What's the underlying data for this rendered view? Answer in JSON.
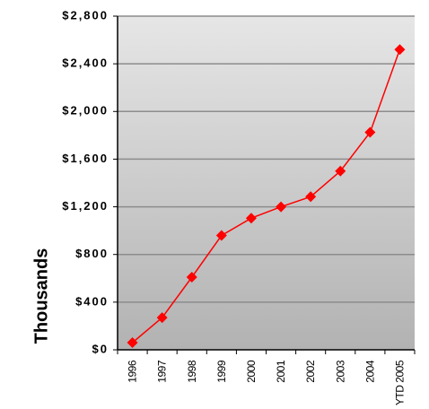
{
  "chart_data": {
    "type": "line",
    "title": "",
    "xlabel": "",
    "ylabel": "Thousands",
    "categories": [
      "1996",
      "1997",
      "1998",
      "1999",
      "2000",
      "2001",
      "2002",
      "2003",
      "2004",
      "YTD 2005"
    ],
    "series": [
      {
        "values": [
          60,
          270,
          610,
          960,
          1105,
          1200,
          1285,
          1500,
          1825,
          2520
        ]
      }
    ],
    "ylim": [
      0,
      2800
    ],
    "yticks": [
      0,
      400,
      800,
      1200,
      1600,
      2000,
      2400,
      2800
    ],
    "ytick_labels": [
      "$0",
      "$400",
      "$800",
      "$1,200",
      "$1,600",
      "$2,000",
      "$2,400",
      "$2,800"
    ],
    "grid": true,
    "legend": "none",
    "colors": {
      "series": "#ff0000",
      "marker": "#ff0000",
      "grid": "#8c8c8c",
      "plot_top": "#e6e6e6",
      "plot_bottom": "#b2b2b2"
    }
  }
}
